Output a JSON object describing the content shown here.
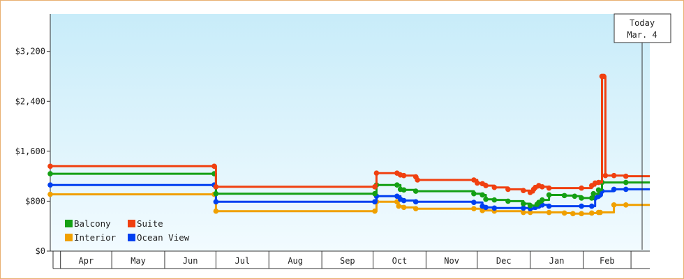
{
  "chart_data": {
    "type": "line",
    "step": true,
    "title": "",
    "xlabel": "",
    "ylabel": "",
    "ylim": [
      0,
      3800
    ],
    "yticks": [
      0,
      800,
      1600,
      2400,
      3200
    ],
    "ytick_labels": [
      "$0",
      "$800",
      "$1,600",
      "$2,400",
      "$3,200"
    ],
    "x_axis": {
      "type": "month",
      "range": [
        "2020-03-26",
        "2021-03-12"
      ],
      "months": [
        {
          "label": "Apr",
          "start": "2020-04-01"
        },
        {
          "label": "May",
          "start": "2020-05-01"
        },
        {
          "label": "Jun",
          "start": "2020-06-01"
        },
        {
          "label": "Jul",
          "start": "2020-07-01"
        },
        {
          "label": "Aug",
          "start": "2020-08-01"
        },
        {
          "label": "Sep",
          "start": "2020-09-01"
        },
        {
          "label": "Oct",
          "start": "2020-10-01"
        },
        {
          "label": "Nov",
          "start": "2020-11-01"
        },
        {
          "label": "Dec",
          "start": "2020-12-01"
        },
        {
          "label": "Jan",
          "start": "2021-01-01"
        },
        {
          "label": "Feb",
          "start": "2021-02-01"
        }
      ]
    },
    "today_marker": {
      "line1": "Today",
      "line2": "Mar. 4",
      "date": "2021-03-04"
    },
    "grid": false,
    "legend_position": "bottom-left",
    "series": [
      {
        "name": "Balcony",
        "color": "#14a014",
        "points": [
          [
            "2020-03-26",
            1240
          ],
          [
            "2020-06-30",
            1240
          ],
          [
            "2020-07-01",
            920
          ],
          [
            "2020-10-02",
            920
          ],
          [
            "2020-10-03",
            1060
          ],
          [
            "2020-10-15",
            1060
          ],
          [
            "2020-10-17",
            990
          ],
          [
            "2020-10-19",
            980
          ],
          [
            "2020-10-26",
            960
          ],
          [
            "2020-11-29",
            920
          ],
          [
            "2020-12-04",
            900
          ],
          [
            "2020-12-06",
            830
          ],
          [
            "2020-12-11",
            820
          ],
          [
            "2020-12-19",
            800
          ],
          [
            "2020-12-28",
            760
          ],
          [
            "2021-01-01",
            730
          ],
          [
            "2021-01-05",
            750
          ],
          [
            "2021-01-06",
            780
          ],
          [
            "2021-01-08",
            820
          ],
          [
            "2021-01-12",
            900
          ],
          [
            "2021-01-21",
            890
          ],
          [
            "2021-01-27",
            880
          ],
          [
            "2021-01-31",
            850
          ],
          [
            "2021-02-06",
            850
          ],
          [
            "2021-02-07",
            920
          ],
          [
            "2021-02-10",
            980
          ],
          [
            "2021-02-12",
            1100
          ],
          [
            "2021-02-26",
            1100
          ],
          [
            "2021-03-12",
            1100
          ]
        ]
      },
      {
        "name": "Suite",
        "color": "#f04010",
        "points": [
          [
            "2020-03-26",
            1360
          ],
          [
            "2020-06-30",
            1360
          ],
          [
            "2020-07-01",
            1030
          ],
          [
            "2020-10-02",
            1030
          ],
          [
            "2020-10-03",
            1250
          ],
          [
            "2020-10-15",
            1250
          ],
          [
            "2020-10-17",
            1220
          ],
          [
            "2020-10-19",
            1210
          ],
          [
            "2020-10-26",
            1190
          ],
          [
            "2020-10-27",
            1140
          ],
          [
            "2020-11-29",
            1140
          ],
          [
            "2020-12-01",
            1090
          ],
          [
            "2020-12-04",
            1080
          ],
          [
            "2020-12-06",
            1050
          ],
          [
            "2020-12-11",
            1020
          ],
          [
            "2020-12-19",
            990
          ],
          [
            "2020-12-28",
            970
          ],
          [
            "2021-01-01",
            940
          ],
          [
            "2021-01-03",
            990
          ],
          [
            "2021-01-04",
            1020
          ],
          [
            "2021-01-06",
            1050
          ],
          [
            "2021-01-08",
            1030
          ],
          [
            "2021-01-12",
            1010
          ],
          [
            "2021-01-31",
            1010
          ],
          [
            "2021-02-06",
            1050
          ],
          [
            "2021-02-08",
            1090
          ],
          [
            "2021-02-10",
            1100
          ],
          [
            "2021-02-12",
            2800
          ],
          [
            "2021-02-13",
            2800
          ],
          [
            "2021-02-14",
            1210
          ],
          [
            "2021-02-19",
            1210
          ],
          [
            "2021-02-26",
            1200
          ],
          [
            "2021-03-12",
            1200
          ]
        ]
      },
      {
        "name": "Interior",
        "color": "#f0a000",
        "points": [
          [
            "2020-03-26",
            910
          ],
          [
            "2020-06-30",
            910
          ],
          [
            "2020-07-01",
            640
          ],
          [
            "2020-10-02",
            640
          ],
          [
            "2020-10-03",
            790
          ],
          [
            "2020-10-15",
            790
          ],
          [
            "2020-10-16",
            720
          ],
          [
            "2020-10-19",
            700
          ],
          [
            "2020-10-26",
            680
          ],
          [
            "2020-11-29",
            680
          ],
          [
            "2020-12-04",
            650
          ],
          [
            "2020-12-11",
            640
          ],
          [
            "2020-12-28",
            620
          ],
          [
            "2021-01-01",
            620
          ],
          [
            "2021-01-12",
            620
          ],
          [
            "2021-01-21",
            610
          ],
          [
            "2021-01-26",
            600
          ],
          [
            "2021-01-31",
            600
          ],
          [
            "2021-02-06",
            610
          ],
          [
            "2021-02-10",
            620
          ],
          [
            "2021-02-11",
            620
          ],
          [
            "2021-02-19",
            740
          ],
          [
            "2021-02-26",
            740
          ],
          [
            "2021-03-12",
            740
          ]
        ]
      },
      {
        "name": "Ocean View",
        "color": "#0040f0",
        "points": [
          [
            "2020-03-26",
            1060
          ],
          [
            "2020-06-30",
            1060
          ],
          [
            "2020-07-01",
            790
          ],
          [
            "2020-10-02",
            790
          ],
          [
            "2020-10-03",
            880
          ],
          [
            "2020-10-15",
            880
          ],
          [
            "2020-10-17",
            830
          ],
          [
            "2020-10-19",
            810
          ],
          [
            "2020-10-26",
            790
          ],
          [
            "2020-11-29",
            780
          ],
          [
            "2020-12-04",
            720
          ],
          [
            "2020-12-06",
            700
          ],
          [
            "2020-12-11",
            690
          ],
          [
            "2020-12-28",
            690
          ],
          [
            "2021-01-01",
            680
          ],
          [
            "2021-01-04",
            700
          ],
          [
            "2021-01-06",
            720
          ],
          [
            "2021-01-08",
            740
          ],
          [
            "2021-01-12",
            720
          ],
          [
            "2021-01-31",
            720
          ],
          [
            "2021-02-06",
            720
          ],
          [
            "2021-02-08",
            850
          ],
          [
            "2021-02-10",
            880
          ],
          [
            "2021-02-11",
            900
          ],
          [
            "2021-02-12",
            960
          ],
          [
            "2021-02-19",
            990
          ],
          [
            "2021-02-26",
            990
          ],
          [
            "2021-03-12",
            990
          ]
        ]
      }
    ]
  }
}
